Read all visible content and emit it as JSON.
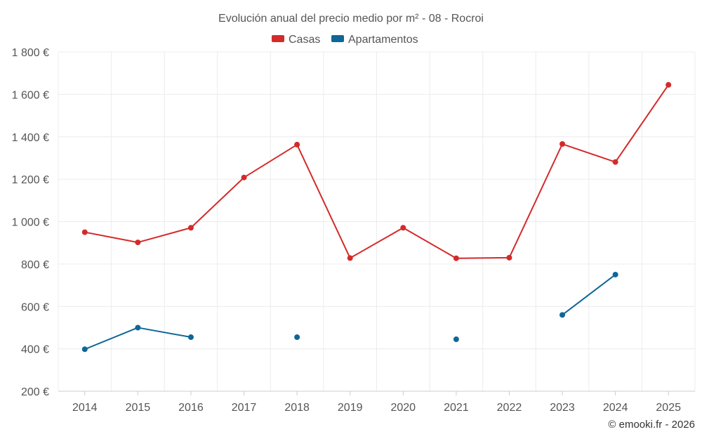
{
  "chart_data": {
    "type": "line",
    "title": "Evolución anual del precio medio por m² - 08 - Rocroi",
    "categories": [
      "2014",
      "2015",
      "2016",
      "2017",
      "2018",
      "2019",
      "2020",
      "2021",
      "2022",
      "2023",
      "2024",
      "2025"
    ],
    "y_tick_labels": [
      "200 €",
      "400 €",
      "600 €",
      "800 €",
      "1 000 €",
      "1 200 €",
      "1 400 €",
      "1 600 €",
      "1 800 €"
    ],
    "y_ticks": [
      200,
      400,
      600,
      800,
      1000,
      1200,
      1400,
      1600,
      1800
    ],
    "ylim": [
      200,
      1800
    ],
    "xlabel": "",
    "ylabel": "",
    "legend_position": "top-center",
    "series": [
      {
        "name": "Casas",
        "color": "#d42a2a",
        "values": [
          950,
          902,
          971,
          1208,
          1363,
          828,
          971,
          827,
          830,
          1366,
          1281,
          1645
        ]
      },
      {
        "name": "Apartamentos",
        "color": "#0f6698",
        "values": [
          398,
          500,
          455,
          null,
          455,
          null,
          null,
          445,
          null,
          560,
          750,
          null
        ]
      }
    ]
  },
  "copyright": "© emooki.fr - 2026"
}
